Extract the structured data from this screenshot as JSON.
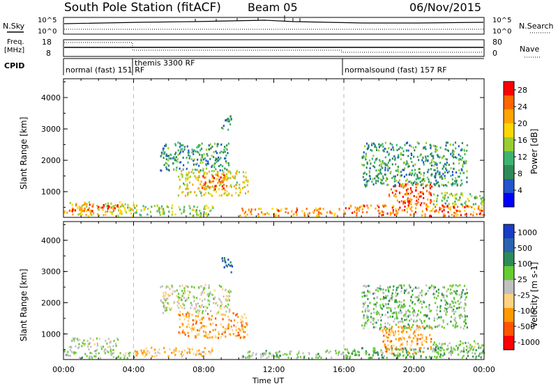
{
  "header": {
    "station": "South Pole Station (fitACF)",
    "beam": "Beam 05",
    "date": "06/Nov/2015"
  },
  "top_panel": {
    "nsky_label": "N.Sky",
    "nsearch_label": "N.Search",
    "left_ticks": [
      "10^5",
      "10^0"
    ],
    "right_ticks": [
      "10^5",
      "10^0"
    ],
    "freq_label_1": "Freq.",
    "freq_label_2": "[MHz]",
    "freq_ticks": [
      "18",
      "8"
    ],
    "nave_label": "Nave",
    "nave_ticks": [
      "80",
      "0"
    ],
    "cpid_label": "CPID",
    "cpid_segments": [
      "normal (fast) 151 RF",
      "themis 3300 RF",
      "normalsound (fast) 157 RF"
    ]
  },
  "colors": {
    "power_scale": [
      "#0000ff",
      "#2255cc",
      "#2e8b57",
      "#3cb371",
      "#9acd32",
      "#ffd700",
      "#ffa500",
      "#ff6600",
      "#ff0000"
    ],
    "velocity_scale": [
      "#1a3cc8",
      "#2a64b0",
      "#2e8b57",
      "#66cc33",
      "#c0c0c0",
      "#ffd27f",
      "#ff9900",
      "#ff5500",
      "#ff0000"
    ]
  },
  "chart_data": [
    {
      "type": "heatmap",
      "title": "Power",
      "ylabel": "Slant Range [km]",
      "xlabel": "Time UT",
      "x_ticks": [
        "00:00",
        "04:00",
        "08:00",
        "12:00",
        "16:00",
        "20:00",
        "00:00"
      ],
      "y_ticks": [
        "1000",
        "2000",
        "3000",
        "4000"
      ],
      "ylim": [
        180,
        4600
      ],
      "xlim_hours": [
        0,
        24
      ],
      "colorbar_label": "Power [dB]",
      "colorbar_ticks": [
        "4",
        "8",
        "12",
        "16",
        "20",
        "24",
        "28"
      ],
      "clim": [
        0,
        30
      ],
      "clusters": [
        {
          "t0": 0.0,
          "t1": 4.0,
          "r0": 250,
          "r1": 700,
          "v": 18
        },
        {
          "t0": 0.3,
          "t1": 3.1,
          "r0": 400,
          "r1": 650,
          "v": 26
        },
        {
          "t0": 4.0,
          "t1": 8.5,
          "r0": 250,
          "r1": 600,
          "v": 14
        },
        {
          "t0": 5.5,
          "t1": 9.5,
          "r0": 1700,
          "r1": 2600,
          "v": 10
        },
        {
          "t0": 6.5,
          "t1": 10.5,
          "r0": 900,
          "r1": 1700,
          "v": 18
        },
        {
          "t0": 7.8,
          "t1": 9.3,
          "r0": 1100,
          "r1": 1600,
          "v": 25
        },
        {
          "t0": 9.0,
          "t1": 9.6,
          "r0": 3000,
          "r1": 3500,
          "v": 10
        },
        {
          "t0": 10.0,
          "t1": 16.0,
          "r0": 250,
          "r1": 500,
          "v": 22
        },
        {
          "t0": 16.0,
          "t1": 24.0,
          "r0": 250,
          "r1": 600,
          "v": 24
        },
        {
          "t0": 18.5,
          "t1": 21.0,
          "r0": 600,
          "r1": 1300,
          "v": 26
        },
        {
          "t0": 17.0,
          "t1": 23.0,
          "r0": 1200,
          "r1": 2600,
          "v": 10
        },
        {
          "t0": 21.0,
          "t1": 24.0,
          "r0": 600,
          "r1": 1000,
          "v": 14
        }
      ]
    },
    {
      "type": "heatmap",
      "title": "Velocity",
      "ylabel": "Slant Range [km]",
      "xlabel": "Time UT",
      "x_ticks": [
        "00:00",
        "04:00",
        "08:00",
        "12:00",
        "16:00",
        "20:00",
        "00:00"
      ],
      "y_ticks": [
        "1000",
        "2000",
        "3000",
        "4000"
      ],
      "ylim": [
        180,
        4600
      ],
      "xlim_hours": [
        0,
        24
      ],
      "colorbar_label": "Velocity [m s-1]",
      "colorbar_ticks": [
        "1000",
        "500",
        "100",
        "25",
        "-25",
        "-100",
        "-500",
        "-1000"
      ],
      "clim": [
        -1000,
        1000
      ],
      "clusters": [
        {
          "t0": 0.0,
          "t1": 4.0,
          "r0": 250,
          "r1": 500,
          "v": 120
        },
        {
          "t0": 0.3,
          "t1": 3.1,
          "r0": 500,
          "r1": 900,
          "v": 0
        },
        {
          "t0": 4.0,
          "t1": 8.5,
          "r0": 300,
          "r1": 600,
          "v": -300
        },
        {
          "t0": 5.5,
          "t1": 9.5,
          "r0": 1700,
          "r1": 2600,
          "v": 10
        },
        {
          "t0": 6.5,
          "t1": 10.5,
          "r0": 900,
          "r1": 1700,
          "v": -400
        },
        {
          "t0": 9.0,
          "t1": 9.6,
          "r0": 3000,
          "r1": 3500,
          "v": 600
        },
        {
          "t0": 10.0,
          "t1": 16.0,
          "r0": 250,
          "r1": 500,
          "v": 150
        },
        {
          "t0": 16.0,
          "t1": 24.0,
          "r0": 250,
          "r1": 600,
          "v": 300
        },
        {
          "t0": 18.0,
          "t1": 21.0,
          "r0": 400,
          "r1": 1300,
          "v": -400
        },
        {
          "t0": 17.0,
          "t1": 23.0,
          "r0": 1200,
          "r1": 2600,
          "v": 200
        },
        {
          "t0": 21.0,
          "t1": 24.0,
          "r0": 400,
          "r1": 800,
          "v": 120
        }
      ]
    }
  ]
}
